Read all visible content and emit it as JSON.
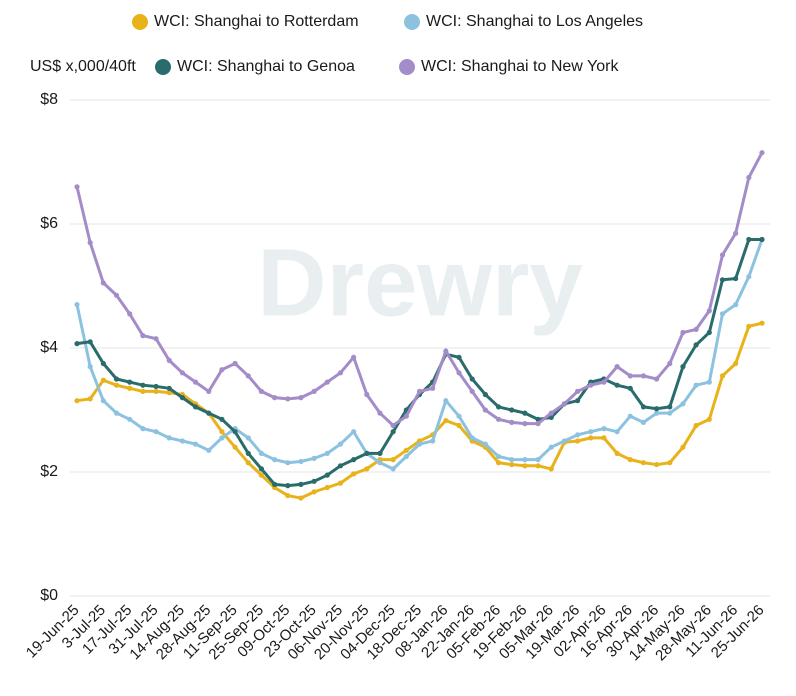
{
  "chart_data": {
    "type": "line",
    "y_axis_label": "US$ x,000/40ft",
    "watermark": "Drewry",
    "categories": [
      "19-Jun-25",
      null,
      "3-Jul-25",
      null,
      "17-Jul-25",
      null,
      "31-Jul-25",
      null,
      "14-Aug-25",
      null,
      "28-Aug-25",
      null,
      "11-Sep-25",
      null,
      "25-Sep-25",
      null,
      "09-Oct-25",
      null,
      "23-Oct-25",
      null,
      "06-Nov-25",
      null,
      "20-Nov-25",
      null,
      "04-Dec-25",
      null,
      "18-Dec-25",
      null,
      "08-Jan-26",
      null,
      "22-Jan-26",
      null,
      "05-Feb-26",
      null,
      "19-Feb-26",
      null,
      "05-Mar-26",
      null,
      "19-Mar-26",
      null,
      "02-Apr-26",
      null,
      "16-Apr-26",
      null,
      "30-Apr-26",
      null,
      "14-May-26",
      null,
      "28-May-26",
      null,
      "11-Jun-26",
      null,
      "25-Jun-26"
    ],
    "series": [
      {
        "name": "WCI: Shanghai to Rotterdam",
        "color": "#e8b21a",
        "values": [
          3.15,
          3.18,
          3.48,
          3.4,
          3.35,
          3.3,
          3.3,
          3.28,
          3.25,
          3.1,
          2.95,
          2.65,
          2.4,
          2.15,
          1.95,
          1.75,
          1.62,
          1.58,
          1.68,
          1.75,
          1.82,
          1.97,
          2.05,
          2.2,
          2.2,
          2.35,
          2.5,
          2.6,
          2.83,
          2.75,
          2.5,
          2.4,
          2.15,
          2.12,
          2.1,
          2.1,
          2.05,
          2.48,
          2.5,
          2.55,
          2.55,
          2.3,
          2.2,
          2.15,
          2.12,
          2.15,
          2.4,
          2.75,
          2.85,
          3.55,
          3.75,
          4.35,
          4.4
        ]
      },
      {
        "name": "WCI: Shanghai to Los Angeles",
        "color": "#8cc2e0",
        "values": [
          4.7,
          3.7,
          3.15,
          2.95,
          2.85,
          2.7,
          2.65,
          2.55,
          2.5,
          2.45,
          2.35,
          2.55,
          2.7,
          2.55,
          2.3,
          2.2,
          2.15,
          2.17,
          2.22,
          2.3,
          2.45,
          2.65,
          2.3,
          2.15,
          2.05,
          2.25,
          2.45,
          2.5,
          3.15,
          2.9,
          2.55,
          2.45,
          2.25,
          2.2,
          2.2,
          2.2,
          2.4,
          2.5,
          2.6,
          2.65,
          2.7,
          2.65,
          2.9,
          2.8,
          2.95,
          2.95,
          3.1,
          3.4,
          3.45,
          4.55,
          4.7,
          5.15,
          5.75
        ]
      },
      {
        "name": "WCI: Shanghai to Genoa",
        "color": "#2a6b6b",
        "values": [
          4.07,
          4.1,
          3.75,
          3.5,
          3.45,
          3.4,
          3.38,
          3.35,
          3.2,
          3.05,
          2.95,
          2.85,
          2.65,
          2.3,
          2.05,
          1.8,
          1.78,
          1.8,
          1.85,
          1.95,
          2.1,
          2.2,
          2.3,
          2.3,
          2.65,
          3.0,
          3.25,
          3.45,
          3.9,
          3.85,
          3.5,
          3.25,
          3.05,
          3.0,
          2.95,
          2.85,
          2.88,
          3.1,
          3.15,
          3.45,
          3.5,
          3.4,
          3.35,
          3.05,
          3.02,
          3.05,
          3.7,
          4.05,
          4.25,
          5.1,
          5.12,
          5.75,
          5.75
        ]
      },
      {
        "name": "WCI: Shanghai to New York",
        "color": "#a48cc8",
        "values": [
          6.6,
          5.7,
          5.05,
          4.85,
          4.55,
          4.2,
          4.15,
          3.8,
          3.6,
          3.45,
          3.3,
          3.65,
          3.75,
          3.55,
          3.3,
          3.2,
          3.18,
          3.2,
          3.3,
          3.45,
          3.6,
          3.85,
          3.25,
          2.95,
          2.75,
          2.9,
          3.3,
          3.35,
          3.95,
          3.6,
          3.3,
          3.0,
          2.85,
          2.8,
          2.78,
          2.78,
          2.95,
          3.1,
          3.3,
          3.4,
          3.45,
          3.7,
          3.55,
          3.55,
          3.5,
          3.75,
          4.25,
          4.3,
          4.6,
          5.5,
          5.85,
          6.75,
          7.15
        ]
      }
    ],
    "ylim": [
      0,
      8
    ],
    "yticks": [
      {
        "value": 0,
        "label": "$0"
      },
      {
        "value": 2,
        "label": "$2"
      },
      {
        "value": 4,
        "label": "$4"
      },
      {
        "value": 6,
        "label": "$6"
      },
      {
        "value": 8,
        "label": "$8"
      }
    ],
    "grid": true
  }
}
